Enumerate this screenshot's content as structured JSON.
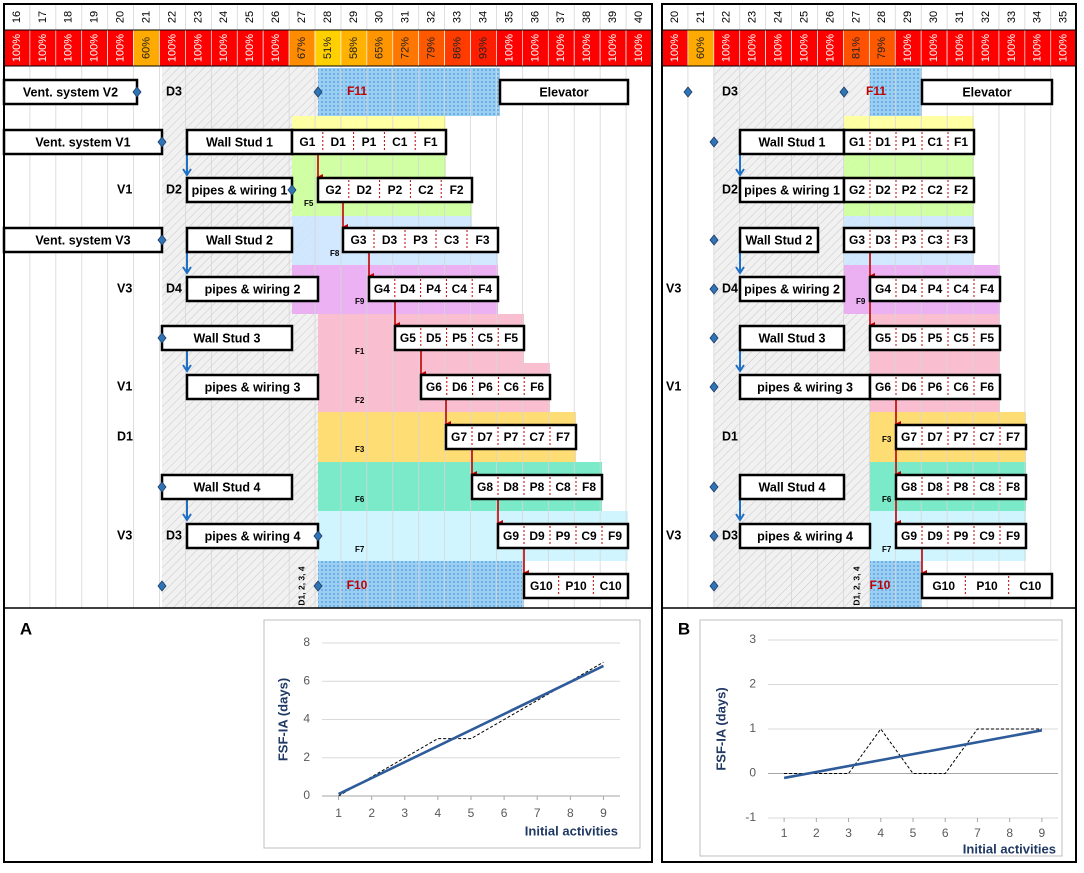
{
  "panels": [
    {
      "label": "A",
      "days": [
        16,
        17,
        18,
        19,
        20,
        21,
        22,
        23,
        24,
        25,
        26,
        27,
        28,
        29,
        30,
        31,
        32,
        33,
        34,
        35,
        36,
        37,
        38,
        39,
        40
      ],
      "percents": {
        "values": [
          100,
          100,
          100,
          100,
          100,
          60,
          100,
          100,
          100,
          100,
          100,
          67,
          51,
          58,
          65,
          72,
          79,
          86,
          93,
          100,
          100,
          100,
          100,
          100,
          100
        ],
        "value_labels": [
          "100%",
          "100%",
          "100%",
          "100%",
          "100%",
          "60%",
          "100%",
          "100%",
          "100%",
          "100%",
          "100%",
          "67%",
          "51%",
          "58%",
          "65%",
          "72%",
          "79%",
          "86%",
          "93%",
          "100%",
          "100%",
          "100%",
          "100%",
          "100%",
          "100%"
        ]
      },
      "labels": [
        "Vent. system V2",
        "D3",
        "F11",
        "Elevator",
        "Vent. system V1",
        "Wall Stud 1",
        [
          "G1",
          "D1",
          "P1",
          "C1",
          "F1"
        ],
        "V1",
        "D2",
        "pipes & wiring 1",
        [
          "G2",
          "D2",
          "P2",
          "C2",
          "F2"
        ],
        "F5",
        "Vent. system V3",
        "Wall Stud 2",
        [
          "G3",
          "D3",
          "P3",
          "C3",
          "F3"
        ],
        "F8",
        "V3",
        "D4",
        "pipes & wiring 2",
        [
          "G4",
          "D4",
          "P4",
          "C4",
          "F4"
        ],
        "F9",
        "Wall Stud 3",
        [
          "G5",
          "D5",
          "P5",
          "C5",
          "F5"
        ],
        "F1",
        "V1",
        "pipes & wiring 3",
        [
          "G6",
          "D6",
          "P6",
          "C6",
          "F6"
        ],
        "F2",
        "D1",
        [
          "G7",
          "D7",
          "P7",
          "C7",
          "F7"
        ],
        "F3",
        "Wall Stud 4",
        [
          "G8",
          "D8",
          "P8",
          "C8",
          "F8"
        ],
        "F6",
        "V3",
        "D3",
        "pipes & wiring 4",
        [
          "G9",
          "D9",
          "P9",
          "C9",
          "F9"
        ],
        "F7",
        "D1, 2, 3, 4",
        "F10",
        [
          "G10",
          "P10",
          "C10"
        ]
      ]
    },
    {
      "label": "B",
      "days": [
        20,
        21,
        22,
        23,
        24,
        25,
        26,
        27,
        28,
        29,
        30,
        31,
        32,
        33,
        34,
        35
      ],
      "percents": {
        "values": [
          100,
          60,
          100,
          100,
          100,
          100,
          100,
          81,
          79,
          100,
          100,
          100,
          100,
          100,
          100,
          100
        ],
        "value_labels": [
          "100%",
          "60%",
          "100%",
          "100%",
          "100%",
          "100%",
          "100%",
          "81%",
          "79%",
          "100%",
          "100%",
          "100%",
          "100%",
          "100%",
          "100%",
          "100%"
        ]
      },
      "labels": [
        "D3",
        "F11",
        "Elevator",
        "Wall Stud 1",
        [
          "G1",
          "D1",
          "P1",
          "C1",
          "F1"
        ],
        "D2",
        "pipes & wiring 1",
        [
          "G2",
          "D2",
          "P2",
          "C2",
          "F2"
        ],
        "Wall Stud 2",
        [
          "G3",
          "D3",
          "P3",
          "C3",
          "F3"
        ],
        "V3",
        "D4",
        "pipes & wiring 2",
        "F9",
        [
          "G4",
          "D4",
          "P4",
          "C4",
          "F4"
        ],
        "Wall Stud 3",
        [
          "G5",
          "D5",
          "P5",
          "C5",
          "F5"
        ],
        "V1",
        "pipes & wiring 3",
        [
          "G6",
          "D6",
          "P6",
          "C6",
          "F6"
        ],
        "D1",
        "F3",
        [
          "G7",
          "D7",
          "P7",
          "C7",
          "F7"
        ],
        "Wall Stud 4",
        "F6",
        [
          "G8",
          "D8",
          "P8",
          "C8",
          "F8"
        ],
        "V3",
        "D3",
        "pipes & wiring 4",
        "F7",
        [
          "G9",
          "D9",
          "P9",
          "C9",
          "F9"
        ],
        "D1, 2, 3, 4",
        "F10",
        [
          "G10",
          "P10",
          "C10"
        ]
      ]
    }
  ],
  "chart_data": [
    {
      "type": "line",
      "y_label": "FSF-IA  (days)",
      "x_label": "Initial activities",
      "xlim": [
        0.5,
        9.5
      ],
      "ylim": [
        0,
        8
      ],
      "xticks": [
        1,
        2,
        3,
        4,
        5,
        6,
        7,
        8,
        9
      ],
      "yticks": [
        0,
        2,
        4,
        6,
        8
      ],
      "grid": true,
      "series": [
        {
          "color": "#000000",
          "dash": true,
          "x": [
            1,
            2,
            3,
            4,
            5,
            6,
            7,
            8,
            9
          ],
          "values": [
            0,
            1,
            2,
            3,
            3,
            4,
            5,
            6,
            7
          ]
        },
        {
          "color": "#2e5b9a",
          "dash": false,
          "x": [
            1,
            9
          ],
          "values": [
            0.1,
            6.8
          ]
        }
      ]
    },
    {
      "type": "line",
      "y_label": "FSF-IA  (days)",
      "x_label": "Initial activities",
      "xlim": [
        0.5,
        9.5
      ],
      "ylim": [
        -1,
        3
      ],
      "xticks": [
        1,
        2,
        3,
        4,
        5,
        6,
        7,
        8,
        9
      ],
      "yticks": [
        -1,
        0,
        1,
        2,
        3
      ],
      "grid": true,
      "series": [
        {
          "color": "#000000",
          "dash": true,
          "x": [
            1,
            2,
            3,
            4,
            5,
            6,
            7,
            8,
            9
          ],
          "values": [
            0,
            0,
            0,
            1,
            0,
            0,
            1,
            1,
            1
          ]
        },
        {
          "color": "#2e5b9a",
          "dash": false,
          "x": [
            1,
            9
          ],
          "values": [
            -0.1,
            0.97
          ]
        }
      ]
    }
  ]
}
